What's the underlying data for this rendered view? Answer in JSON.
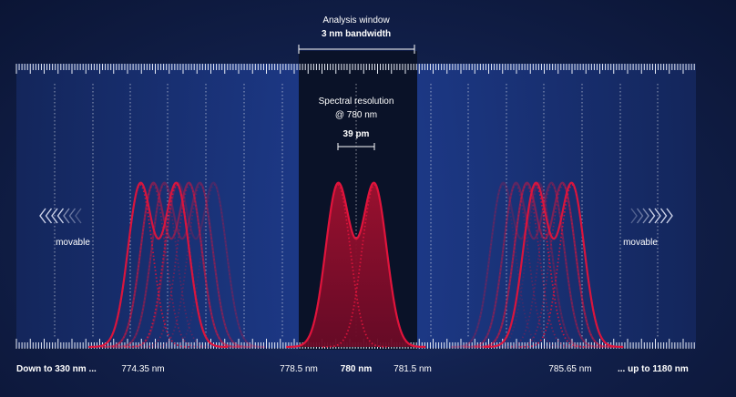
{
  "analysis_window": {
    "title": "Analysis window",
    "bandwidth": "3 nm bandwidth"
  },
  "spectral_resolution": {
    "title": "Spectral resolution",
    "at": "@ 780 nm",
    "value": "39 pm"
  },
  "movable_left": "movable",
  "movable_right": "movable",
  "axis_labels": {
    "lower_limit": "Down to 330 nm ...",
    "left_peak": "774.35 nm",
    "window_start": "778.5 nm",
    "center": "780 nm",
    "window_end": "781.5 nm",
    "right_peak": "785.65 nm",
    "upper_limit": "... up to 1180 nm"
  },
  "colors": {
    "background": "#12214d",
    "window": "#0a1228",
    "peak": "#e0143c",
    "tick": "#e8ecf5",
    "arrow": "#d7dcf0"
  }
}
